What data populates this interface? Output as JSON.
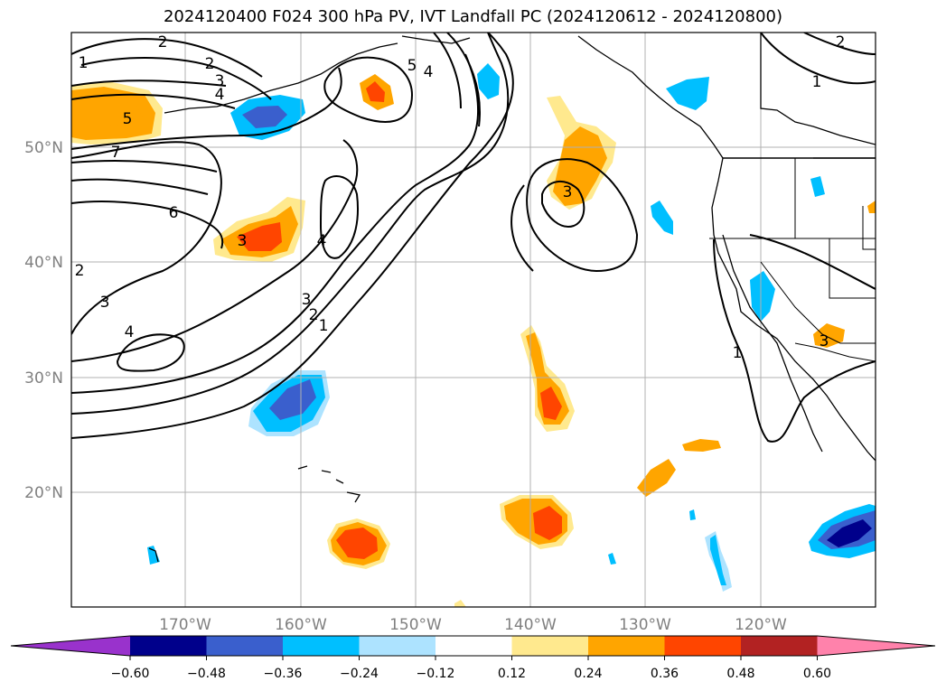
{
  "title": "2024120400 F024 300 hPa PV, IVT Landfall PC (2024120612 - 2024120800)",
  "map": {
    "projection": "PlateCarree",
    "lon_range": [
      -180,
      -110
    ],
    "lat_range": [
      10,
      60
    ],
    "lon_ticks": [
      {
        "lon": -170,
        "label": "170°W"
      },
      {
        "lon": -160,
        "label": "160°W"
      },
      {
        "lon": -150,
        "label": "150°W"
      },
      {
        "lon": -140,
        "label": "140°W"
      },
      {
        "lon": -130,
        "label": "130°W"
      },
      {
        "lon": -120,
        "label": "120°W"
      }
    ],
    "lat_ticks": [
      {
        "lat": 20,
        "label": "20°N"
      },
      {
        "lat": 30,
        "label": "30°N"
      },
      {
        "lat": 40,
        "label": "40°N"
      },
      {
        "lat": 50,
        "label": "50°N"
      }
    ],
    "gridlines": true,
    "contour_labels": [
      "2",
      "2",
      "3",
      "4",
      "5",
      "7",
      "6",
      "1",
      "4",
      "5",
      "3",
      "2",
      "1",
      "3",
      "4",
      "4",
      "3",
      "2",
      "1",
      "3",
      "2",
      "1",
      "1",
      "3"
    ]
  },
  "colorbar": {
    "colors": [
      "#9932CC",
      "#00008B",
      "#3A5FCD",
      "#00BFFF",
      "#ADE3FF",
      "#FFFFFF",
      "#FFE98E",
      "#FFA500",
      "#FF4500",
      "#B22222",
      "#FF82AB"
    ],
    "tick_labels": [
      "−0.60",
      "−0.48",
      "−0.36",
      "−0.24",
      "−0.12",
      "0.12",
      "0.24",
      "0.36",
      "0.48",
      "0.60"
    ],
    "extend": "both"
  }
}
